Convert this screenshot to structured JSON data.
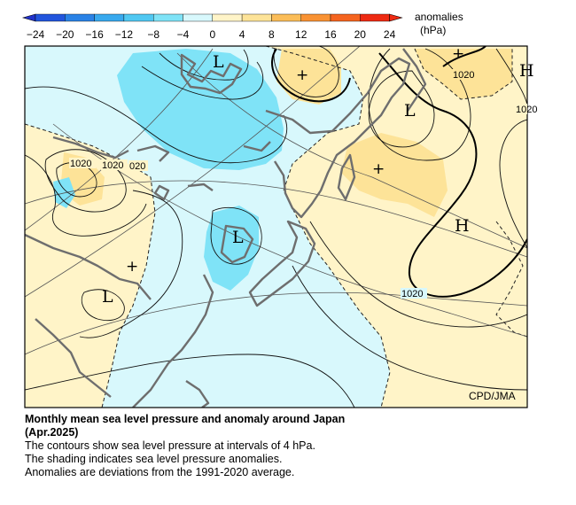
{
  "legend": {
    "title": "anomalies",
    "unit": "(hPa)",
    "ticks": [
      "−24",
      "−20",
      "−16",
      "−12",
      "−8",
      "−4",
      "0",
      "4",
      "8",
      "12",
      "16",
      "20",
      "24"
    ],
    "colors": {
      "n24": "#2233cc",
      "n20": "#2255dd",
      "n16": "#2a82e6",
      "n12": "#38a9ee",
      "n8": "#50c8f2",
      "n4": "#7fe3f7",
      "n0": "#d8f8fc",
      "p0": "#fff4c8",
      "p4": "#fde398",
      "p8": "#fbbd58",
      "p12": "#f99233",
      "p16": "#f5641f",
      "p20": "#ee2a12"
    }
  },
  "map": {
    "credit": "CPD/JMA",
    "pressure_centers": [
      {
        "kind": "L",
        "label": "L"
      },
      {
        "kind": "L",
        "label": "L"
      },
      {
        "kind": "L",
        "label": "L"
      },
      {
        "kind": "L",
        "label": "L"
      },
      {
        "kind": "H",
        "label": "H"
      },
      {
        "kind": "H",
        "label": "H"
      }
    ],
    "anomaly_centers": [
      "+",
      "+",
      "+",
      "+"
    ],
    "contour_labels": [
      "1020",
      "1020",
      "020",
      "1020",
      "1020",
      "1020"
    ]
  },
  "caption": {
    "title_line1": "Monthly mean sea level pressure and anomaly around Japan",
    "title_line2": "(Apr.2025)",
    "line1": "The contours show sea level pressure at intervals of 4 hPa.",
    "line2": "The shading indicates sea level pressure anomalies.",
    "line3": "Anomalies are deviations from the 1991-2020 average."
  }
}
